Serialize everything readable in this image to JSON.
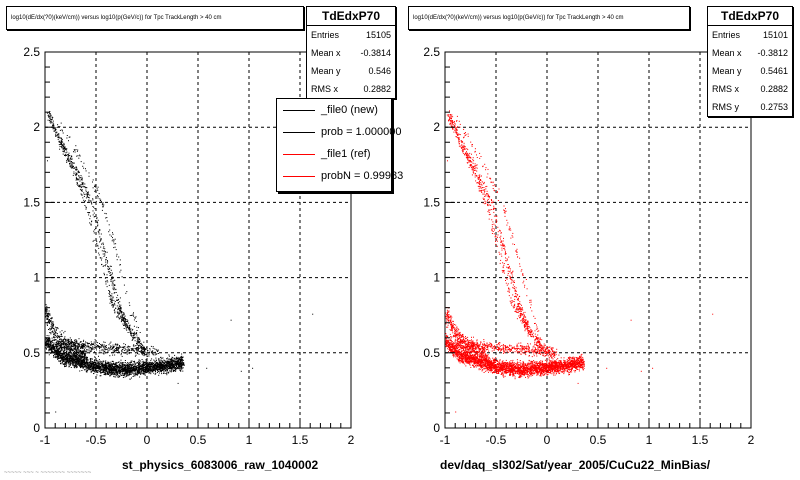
{
  "chart_data": [
    {
      "type": "scatter",
      "title": "log10(dE/dx(?0)(keV/cm)) versus log10(p(GeV/c)) for Tpc TrackLength > 40 cm",
      "xlabel": "st_physics_6083006_raw_1040002",
      "ylabel": "",
      "xlim": [
        -1,
        2
      ],
      "ylim": [
        0,
        2.5
      ],
      "xticks": [
        "-1",
        "-0.5",
        "0",
        "0.5",
        "1",
        "1.5",
        "2"
      ],
      "yticks": [
        "0",
        "0.5",
        "1",
        "1.5",
        "2",
        "2.5"
      ],
      "grid": true,
      "color": "#000000",
      "stats": {
        "name": "TdEdxP70",
        "rows": [
          {
            "label": "Entries",
            "value": "15105"
          },
          {
            "label": "Mean x",
            "value": "-0.3814"
          },
          {
            "label": "Mean y",
            "value": "0.546"
          },
          {
            "label": "RMS x",
            "value": "0.2882"
          }
        ]
      },
      "legend": {
        "placement": "top-right",
        "entries": [
          {
            "label": "_file0 (new)",
            "color": "#000000"
          },
          {
            "label": "prob = 1.000000",
            "color": "#000000"
          },
          {
            "label": "_file1 (ref)",
            "color": "#ff0000"
          },
          {
            "label": "probN = 0.99983",
            "color": "#ff0000"
          }
        ]
      },
      "bands": [
        {
          "x": [
            -0.97,
            -0.85,
            -0.7,
            -0.55,
            -0.4,
            -0.28,
            -0.2,
            -0.1,
            -0.02
          ],
          "y": [
            2.08,
            1.9,
            1.72,
            1.5,
            1.12,
            0.82,
            0.68,
            0.58,
            0.52
          ],
          "n": 520,
          "spread": 0.035
        },
        {
          "x": [
            -0.97,
            -0.88,
            -0.78,
            -0.68,
            -0.58,
            -0.45,
            -0.35,
            -0.28,
            -0.18
          ],
          "y": [
            2.1,
            1.95,
            1.8,
            1.65,
            1.45,
            1.1,
            0.85,
            0.75,
            0.66
          ],
          "n": 260,
          "spread": 0.03
        },
        {
          "x": [
            -0.9,
            -0.75,
            -0.6,
            -0.45,
            -0.32,
            -0.2,
            -0.08
          ],
          "y": [
            2.05,
            1.9,
            1.72,
            1.5,
            1.22,
            0.9,
            0.62
          ],
          "n": 120,
          "spread": 0.03
        },
        {
          "x": [
            -1.0,
            -0.85,
            -0.7,
            -0.55,
            -0.4,
            -0.25,
            -0.1,
            0.05,
            0.2,
            0.35
          ],
          "y": [
            0.58,
            0.48,
            0.45,
            0.42,
            0.4,
            0.39,
            0.4,
            0.41,
            0.42,
            0.44
          ],
          "n": 3200,
          "spread": 0.045
        },
        {
          "x": [
            -1.0,
            -0.9,
            -0.8,
            -0.7,
            -0.6
          ],
          "y": [
            0.78,
            0.62,
            0.55,
            0.52,
            0.5
          ],
          "n": 500,
          "spread": 0.06
        },
        {
          "x": [
            -0.9,
            -0.7,
            -0.5,
            -0.3,
            -0.1,
            0.1
          ],
          "y": [
            0.56,
            0.55,
            0.54,
            0.53,
            0.52,
            0.5
          ],
          "n": 500,
          "spread": 0.035
        }
      ],
      "outliers": [
        [
          -0.98,
          1.78
        ],
        [
          0.82,
          0.72
        ],
        [
          1.62,
          0.76
        ],
        [
          0.92,
          0.38
        ],
        [
          1.03,
          0.4
        ],
        [
          0.58,
          0.4
        ],
        [
          -0.9,
          0.11
        ],
        [
          0.3,
          0.3
        ]
      ]
    },
    {
      "type": "scatter",
      "title": "log10(dE/dx(?0)(keV/cm)) versus log10(p(GeV/c)) for Tpc TrackLength > 40 cm",
      "xlabel": "dev/daq_sl302/Sat/year_2005/CuCu22_MinBias/",
      "ylabel": "",
      "xlim": [
        -1,
        2
      ],
      "ylim": [
        0,
        2.5
      ],
      "xticks": [
        "-1",
        "-0.5",
        "0",
        "0.5",
        "1",
        "1.5",
        "2"
      ],
      "yticks": [
        "0",
        "0.5",
        "1",
        "1.5",
        "2",
        "2.5"
      ],
      "grid": true,
      "color": "#ff0000",
      "stats": {
        "name": "TdEdxP70",
        "rows": [
          {
            "label": "Entries",
            "value": "15101"
          },
          {
            "label": "Mean x",
            "value": "-0.3812"
          },
          {
            "label": "Mean y",
            "value": "0.5461"
          },
          {
            "label": "RMS x",
            "value": "0.2882"
          },
          {
            "label": "RMS y",
            "value": "0.2753"
          }
        ]
      },
      "bands": [
        {
          "x": [
            -0.97,
            -0.85,
            -0.7,
            -0.55,
            -0.4,
            -0.28,
            -0.2,
            -0.1,
            -0.02
          ],
          "y": [
            2.08,
            1.9,
            1.72,
            1.5,
            1.12,
            0.82,
            0.68,
            0.58,
            0.52
          ],
          "n": 520,
          "spread": 0.035
        },
        {
          "x": [
            -0.97,
            -0.88,
            -0.78,
            -0.68,
            -0.58,
            -0.45,
            -0.35,
            -0.28,
            -0.18
          ],
          "y": [
            2.1,
            1.95,
            1.8,
            1.65,
            1.45,
            1.1,
            0.85,
            0.75,
            0.66
          ],
          "n": 260,
          "spread": 0.03
        },
        {
          "x": [
            -0.9,
            -0.75,
            -0.6,
            -0.45,
            -0.32,
            -0.2,
            -0.08
          ],
          "y": [
            2.05,
            1.9,
            1.72,
            1.5,
            1.22,
            0.9,
            0.62
          ],
          "n": 120,
          "spread": 0.03
        },
        {
          "x": [
            -1.0,
            -0.85,
            -0.7,
            -0.55,
            -0.4,
            -0.25,
            -0.1,
            0.05,
            0.2,
            0.35
          ],
          "y": [
            0.58,
            0.48,
            0.45,
            0.42,
            0.4,
            0.39,
            0.4,
            0.41,
            0.42,
            0.44
          ],
          "n": 3200,
          "spread": 0.045
        },
        {
          "x": [
            -1.0,
            -0.9,
            -0.8,
            -0.7,
            -0.6
          ],
          "y": [
            0.78,
            0.62,
            0.55,
            0.52,
            0.5
          ],
          "n": 500,
          "spread": 0.06
        },
        {
          "x": [
            -0.9,
            -0.7,
            -0.5,
            -0.3,
            -0.1,
            0.1
          ],
          "y": [
            0.56,
            0.55,
            0.54,
            0.53,
            0.52,
            0.5
          ],
          "n": 500,
          "spread": 0.035
        }
      ],
      "outliers": [
        [
          -0.98,
          1.78
        ],
        [
          0.82,
          0.72
        ],
        [
          1.62,
          0.76
        ],
        [
          0.92,
          0.38
        ],
        [
          1.03,
          0.4
        ],
        [
          0.58,
          0.4
        ],
        [
          -0.9,
          0.11
        ],
        [
          0.3,
          0.3
        ]
      ]
    }
  ],
  "footer_note": "~~~~~ ~~~ ~ ~~~~~~~ ~~~~~~~"
}
